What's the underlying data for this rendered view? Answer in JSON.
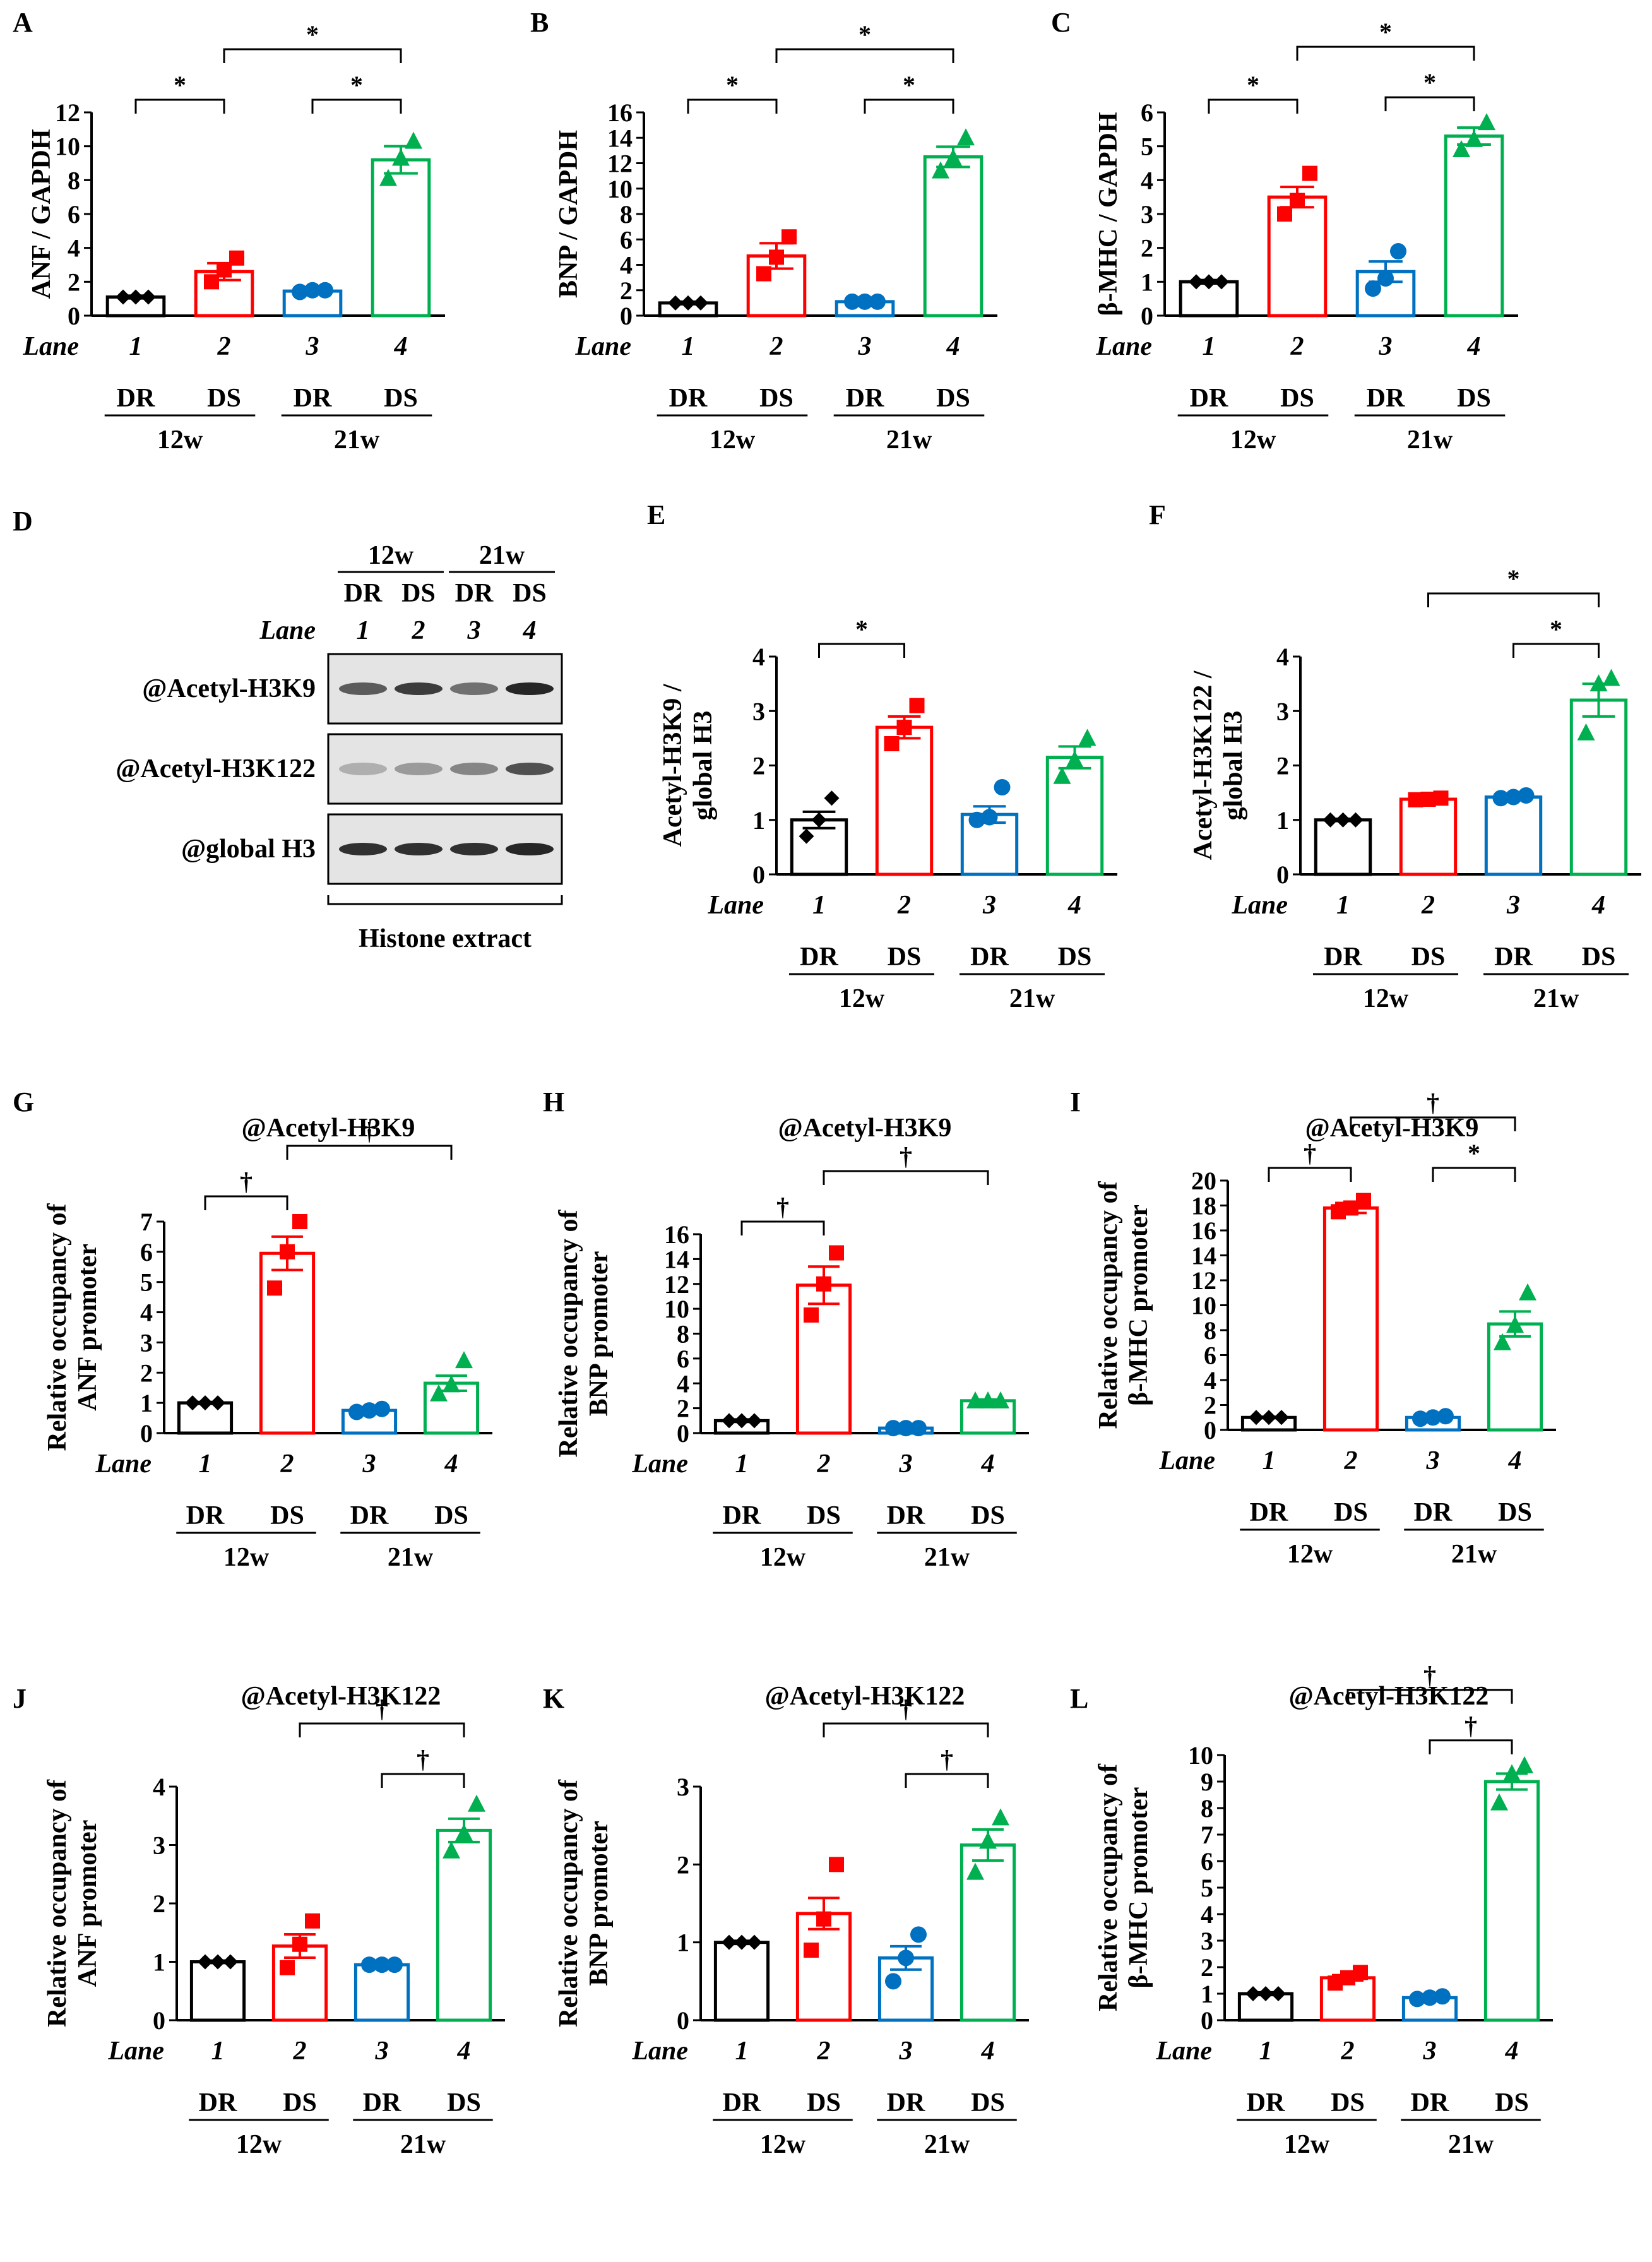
{
  "panels": [
    {
      "letter": "A",
      "ylabel": "ANF / GAPDH",
      "ylim": [
        0,
        12
      ],
      "ticks": [
        0,
        2,
        4,
        6,
        8,
        10,
        12
      ],
      "values": [
        1.1,
        2.6,
        1.45,
        9.2
      ],
      "sem": [
        0.08,
        0.5,
        0.08,
        0.8
      ],
      "points": [
        [
          1.1,
          1.1,
          1.1
        ],
        [
          2.0,
          2.7,
          3.4
        ],
        [
          1.4,
          1.5,
          1.5
        ],
        [
          8.1,
          9.3,
          10.3
        ]
      ],
      "sig": [
        {
          "from": 1,
          "to": 2,
          "label": "*"
        },
        {
          "from": 3,
          "to": 4,
          "label": "*"
        },
        {
          "from": 2,
          "to": 4,
          "label": "*"
        }
      ]
    },
    {
      "letter": "B",
      "ylabel": "BNP / GAPDH",
      "ylim": [
        0,
        16
      ],
      "ticks": [
        0,
        2,
        4,
        6,
        8,
        10,
        12,
        14,
        16
      ],
      "values": [
        1.0,
        4.7,
        1.1,
        12.5
      ],
      "sem": [
        0.1,
        1.0,
        0.1,
        0.8
      ],
      "points": [
        [
          1.0,
          1.0,
          1.0
        ],
        [
          3.3,
          4.6,
          6.2
        ],
        [
          1.1,
          1.1,
          1.1
        ],
        [
          11.4,
          12.4,
          14.0
        ]
      ],
      "sig": [
        {
          "from": 1,
          "to": 2,
          "label": "*"
        },
        {
          "from": 3,
          "to": 4,
          "label": "*"
        },
        {
          "from": 2,
          "to": 4,
          "label": "*"
        }
      ]
    },
    {
      "letter": "C",
      "ylabel": "β-MHC / GAPDH",
      "ylim": [
        0,
        6
      ],
      "ticks": [
        0,
        1,
        2,
        3,
        4,
        5,
        6
      ],
      "values": [
        1.0,
        3.5,
        1.3,
        5.3
      ],
      "sem": [
        0.05,
        0.3,
        0.3,
        0.25
      ],
      "points": [
        [
          1.0,
          1.0,
          1.0
        ],
        [
          3.0,
          3.4,
          4.2
        ],
        [
          0.8,
          1.1,
          1.9
        ],
        [
          4.9,
          5.2,
          5.7
        ]
      ],
      "sig": [
        {
          "from": 1,
          "to": 2,
          "label": "*"
        },
        {
          "from": 3,
          "to": 4,
          "label": "*"
        },
        {
          "from": 2,
          "to": 4,
          "label": "*"
        }
      ]
    },
    {
      "letter": "E",
      "ylabel": "Acetyl-H3K9 / global H3",
      "ylim": [
        0,
        4
      ],
      "ticks": [
        0,
        1,
        2,
        3,
        4
      ],
      "values": [
        1.0,
        2.7,
        1.1,
        2.15
      ],
      "sem": [
        0.15,
        0.2,
        0.15,
        0.2
      ],
      "points": [
        [
          0.7,
          1.0,
          1.4
        ],
        [
          2.4,
          2.7,
          3.1
        ],
        [
          1.0,
          1.05,
          1.6
        ],
        [
          1.8,
          2.1,
          2.5
        ]
      ],
      "sig": [
        {
          "from": 1,
          "to": 2,
          "label": "*"
        }
      ]
    },
    {
      "letter": "F",
      "ylabel": "Acetyl-H3K122 / global H3",
      "ylim": [
        0,
        4
      ],
      "ticks": [
        0,
        1,
        2,
        3,
        4
      ],
      "values": [
        1.0,
        1.38,
        1.42,
        3.2
      ],
      "sem": [
        0.02,
        0.03,
        0.03,
        0.3
      ],
      "points": [
        [
          1.0,
          1.0,
          1.0
        ],
        [
          1.37,
          1.38,
          1.4
        ],
        [
          1.4,
          1.42,
          1.45
        ],
        [
          2.6,
          3.5,
          3.6
        ]
      ],
      "sig": [
        {
          "from": 3,
          "to": 4,
          "label": "*"
        },
        {
          "from": 2,
          "to": 4,
          "label": "*"
        }
      ]
    },
    {
      "letter": "G",
      "title": "@Acetyl-H3K9",
      "ylabel": "Relative occupancy of ANF promoter",
      "ylim": [
        0,
        7
      ],
      "ticks": [
        0,
        1,
        2,
        3,
        4,
        5,
        6,
        7
      ],
      "values": [
        1.0,
        5.95,
        0.75,
        1.65
      ],
      "sem": [
        0.03,
        0.55,
        0.06,
        0.25
      ],
      "points": [
        [
          1.0,
          1.0,
          1.0
        ],
        [
          4.8,
          6.0,
          7.0
        ],
        [
          0.7,
          0.75,
          0.8
        ],
        [
          1.3,
          1.6,
          2.4
        ]
      ],
      "sig": [
        {
          "from": 1,
          "to": 2,
          "label": "†"
        },
        {
          "from": 2,
          "to": 4,
          "label": "†"
        }
      ]
    },
    {
      "letter": "H",
      "title": "@Acetyl-H3K9",
      "ylabel": "Relative occupancy of BNP promoter",
      "ylim": [
        0,
        16
      ],
      "ticks": [
        0,
        2,
        4,
        6,
        8,
        10,
        12,
        14,
        16
      ],
      "values": [
        1.0,
        11.9,
        0.4,
        2.6
      ],
      "sem": [
        0.1,
        1.5,
        0.05,
        0.1
      ],
      "points": [
        [
          1.0,
          1.0,
          1.0
        ],
        [
          9.5,
          12.0,
          14.5
        ],
        [
          0.4,
          0.4,
          0.4
        ],
        [
          2.6,
          2.6,
          2.6
        ]
      ],
      "sig": [
        {
          "from": 1,
          "to": 2,
          "label": "†"
        },
        {
          "from": 2,
          "to": 4,
          "label": "†"
        }
      ]
    },
    {
      "letter": "I",
      "title": "@Acetyl-H3K9",
      "ylabel": "Relative occupancy of β-MHC promoter",
      "ylim": [
        0,
        20
      ],
      "ticks": [
        0,
        2,
        4,
        6,
        8,
        10,
        12,
        14,
        16,
        18,
        20
      ],
      "values": [
        1.0,
        17.8,
        1.0,
        8.5
      ],
      "sem": [
        0.05,
        0.4,
        0.1,
        1.0
      ],
      "points": [
        [
          1.0,
          1.0,
          1.0
        ],
        [
          17.5,
          17.8,
          18.4
        ],
        [
          0.9,
          1.0,
          1.1
        ],
        [
          7.0,
          8.4,
          11.0
        ]
      ],
      "sig": [
        {
          "from": 1,
          "to": 2,
          "label": "†"
        },
        {
          "from": 2,
          "to": 4,
          "label": "†"
        },
        {
          "from": 3,
          "to": 4,
          "label": "*"
        }
      ]
    },
    {
      "letter": "J",
      "title": "@Acetyl-H3K122",
      "ylabel": "Relative occupancy of ANF promoter",
      "ylim": [
        0,
        4
      ],
      "ticks": [
        0,
        1,
        2,
        3,
        4
      ],
      "values": [
        1.0,
        1.27,
        0.95,
        3.25
      ],
      "sem": [
        0.02,
        0.2,
        0.02,
        0.2
      ],
      "points": [
        [
          1.0,
          1.0,
          1.0
        ],
        [
          0.9,
          1.3,
          1.7
        ],
        [
          0.95,
          0.95,
          0.95
        ],
        [
          2.9,
          3.2,
          3.7
        ]
      ],
      "sig": [
        {
          "from": 3,
          "to": 4,
          "label": "†"
        },
        {
          "from": 2,
          "to": 4,
          "label": "†"
        }
      ]
    },
    {
      "letter": "K",
      "title": "@Acetyl-H3K122",
      "ylabel": "Relative occupancy of BNP promoter",
      "ylim": [
        0,
        3
      ],
      "ticks": [
        0,
        1,
        2,
        3
      ],
      "values": [
        1.0,
        1.37,
        0.8,
        2.25
      ],
      "sem": [
        0.02,
        0.2,
        0.15,
        0.2
      ],
      "points": [
        [
          1.0,
          1.0,
          1.0
        ],
        [
          0.9,
          1.3,
          2.0
        ],
        [
          0.5,
          0.8,
          1.1
        ],
        [
          1.9,
          2.3,
          2.6
        ]
      ],
      "sig": [
        {
          "from": 3,
          "to": 4,
          "label": "†"
        },
        {
          "from": 2,
          "to": 4,
          "label": "†"
        }
      ]
    },
    {
      "letter": "L",
      "title": "@Acetyl-H3K122",
      "ylabel": "Relative occupancy of β-MHC promoter",
      "ylim": [
        0,
        10
      ],
      "ticks": [
        0,
        1,
        2,
        3,
        4,
        5,
        6,
        7,
        8,
        9,
        10
      ],
      "values": [
        1.0,
        1.6,
        0.85,
        9.0
      ],
      "sem": [
        0.05,
        0.1,
        0.05,
        0.3
      ],
      "points": [
        [
          1.0,
          1.0,
          1.0
        ],
        [
          1.4,
          1.6,
          1.8
        ],
        [
          0.8,
          0.85,
          0.9
        ],
        [
          8.2,
          9.3,
          9.6
        ]
      ],
      "sig": [
        {
          "from": 3,
          "to": 4,
          "label": "†"
        },
        {
          "from": 2,
          "to": 4,
          "label": "†"
        }
      ]
    }
  ],
  "lane_label": "Lane",
  "lanes": [
    "1",
    "2",
    "3",
    "4"
  ],
  "group_labels": [
    "DR",
    "DS",
    "DR",
    "DS"
  ],
  "period_labels": [
    "12w",
    "21w"
  ],
  "colors": [
    "#000000",
    "#ff0000",
    "#0070c0",
    "#00b050"
  ],
  "blot": {
    "letter": "D",
    "periods": [
      "12w",
      "21w"
    ],
    "groups": [
      "DR",
      "DS",
      "DR",
      "DS"
    ],
    "lane_label": "Lane",
    "lanes": [
      "1",
      "2",
      "3",
      "4"
    ],
    "rows": [
      "@Acetyl-H3K9",
      "@Acetyl-H3K122",
      "@global H3"
    ],
    "footer": "Histone extract"
  },
  "chart_data": [
    {
      "type": "bar",
      "panel": "A",
      "ylabel": "ANF / GAPDH",
      "categories": [
        "1 DR 12w",
        "2 DS 12w",
        "3 DR 21w",
        "4 DS 21w"
      ],
      "values": [
        1.1,
        2.6,
        1.45,
        9.2
      ],
      "ylim": [
        0,
        12
      ]
    },
    {
      "type": "bar",
      "panel": "B",
      "ylabel": "BNP / GAPDH",
      "categories": [
        "1 DR 12w",
        "2 DS 12w",
        "3 DR 21w",
        "4 DS 21w"
      ],
      "values": [
        1.0,
        4.7,
        1.1,
        12.5
      ],
      "ylim": [
        0,
        16
      ]
    },
    {
      "type": "bar",
      "panel": "C",
      "ylabel": "β-MHC / GAPDH",
      "categories": [
        "1 DR 12w",
        "2 DS 12w",
        "3 DR 21w",
        "4 DS 21w"
      ],
      "values": [
        1.0,
        3.5,
        1.3,
        5.3
      ],
      "ylim": [
        0,
        6
      ]
    },
    {
      "type": "bar",
      "panel": "E",
      "ylabel": "Acetyl-H3K9 / global H3",
      "categories": [
        "1 DR 12w",
        "2 DS 12w",
        "3 DR 21w",
        "4 DS 21w"
      ],
      "values": [
        1.0,
        2.7,
        1.1,
        2.15
      ],
      "ylim": [
        0,
        4
      ]
    },
    {
      "type": "bar",
      "panel": "F",
      "ylabel": "Acetyl-H3K122 / global H3",
      "categories": [
        "1 DR 12w",
        "2 DS 12w",
        "3 DR 21w",
        "4 DS 21w"
      ],
      "values": [
        1.0,
        1.38,
        1.42,
        3.2
      ],
      "ylim": [
        0,
        4
      ]
    },
    {
      "type": "bar",
      "panel": "G",
      "title": "@Acetyl-H3K9",
      "ylabel": "Relative occupancy of ANF promoter",
      "categories": [
        "1 DR 12w",
        "2 DS 12w",
        "3 DR 21w",
        "4 DS 21w"
      ],
      "values": [
        1.0,
        5.95,
        0.75,
        1.65
      ],
      "ylim": [
        0,
        7
      ]
    },
    {
      "type": "bar",
      "panel": "H",
      "title": "@Acetyl-H3K9",
      "ylabel": "Relative occupancy of BNP promoter",
      "categories": [
        "1 DR 12w",
        "2 DS 12w",
        "3 DR 21w",
        "4 DS 21w"
      ],
      "values": [
        1.0,
        11.9,
        0.4,
        2.6
      ],
      "ylim": [
        0,
        16
      ]
    },
    {
      "type": "bar",
      "panel": "I",
      "title": "@Acetyl-H3K9",
      "ylabel": "Relative occupancy of β-MHC promoter",
      "categories": [
        "1 DR 12w",
        "2 DS 12w",
        "3 DR 21w",
        "4 DS 21w"
      ],
      "values": [
        1.0,
        17.8,
        1.0,
        8.5
      ],
      "ylim": [
        0,
        20
      ]
    },
    {
      "type": "bar",
      "panel": "J",
      "title": "@Acetyl-H3K122",
      "ylabel": "Relative occupancy of ANF promoter",
      "categories": [
        "1 DR 12w",
        "2 DS 12w",
        "3 DR 21w",
        "4 DS 21w"
      ],
      "values": [
        1.0,
        1.27,
        0.95,
        3.25
      ],
      "ylim": [
        0,
        4
      ]
    },
    {
      "type": "bar",
      "panel": "K",
      "title": "@Acetyl-H3K122",
      "ylabel": "Relative occupancy of BNP promoter",
      "categories": [
        "1 DR 12w",
        "2 DS 12w",
        "3 DR 21w",
        "4 DS 21w"
      ],
      "values": [
        1.0,
        1.37,
        0.8,
        2.25
      ],
      "ylim": [
        0,
        3
      ]
    },
    {
      "type": "bar",
      "panel": "L",
      "title": "@Acetyl-H3K122",
      "ylabel": "Relative occupancy of β-MHC promoter",
      "categories": [
        "1 DR 12w",
        "2 DS 12w",
        "3 DR 21w",
        "4 DS 21w"
      ],
      "values": [
        1.0,
        1.6,
        0.85,
        9.0
      ],
      "ylim": [
        0,
        10
      ]
    }
  ]
}
